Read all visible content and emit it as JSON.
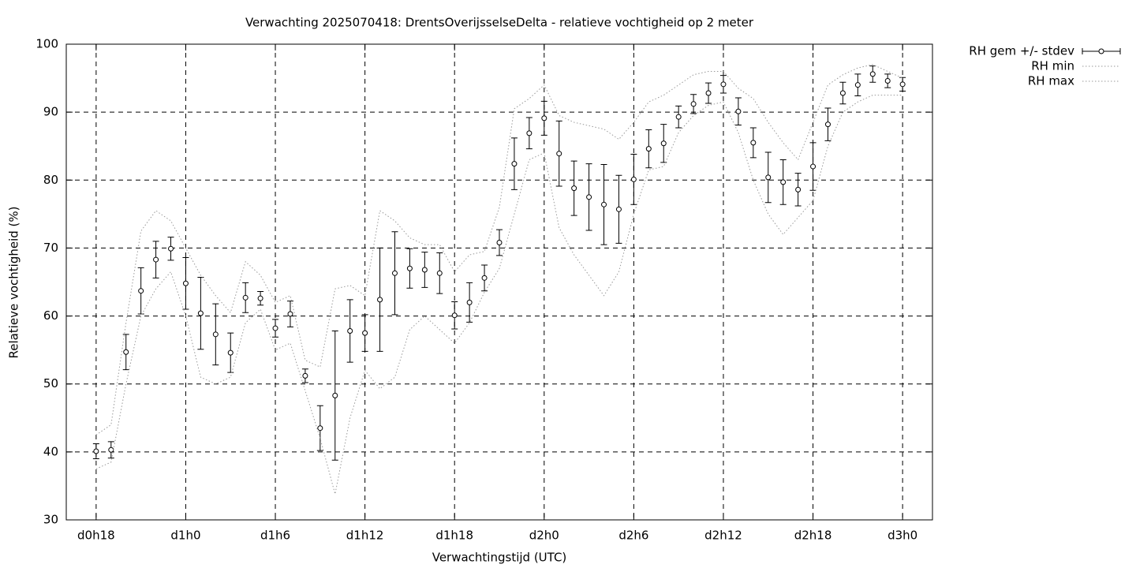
{
  "chart_data": {
    "type": "errorbar",
    "title": "Verwachting 2025070418: DrentsOverijsselseDelta - relatieve vochtigheid op 2 meter",
    "x_label": "Verwachtingstijd (UTC)",
    "y_label": "Relatieve vochtigheid (%)",
    "x": [
      18,
      19,
      20,
      21,
      22,
      23,
      24,
      25,
      26,
      27,
      28,
      29,
      30,
      31,
      32,
      33,
      34,
      35,
      36,
      37,
      38,
      39,
      40,
      41,
      42,
      43,
      44,
      45,
      46,
      47,
      48,
      49,
      50,
      51,
      52,
      53,
      54,
      55,
      56,
      57,
      58,
      59,
      60,
      61,
      62,
      63,
      64,
      65,
      66,
      67,
      68,
      69,
      70,
      71,
      72
    ],
    "xlim": [
      16,
      74
    ],
    "xticks": [
      {
        "value": 18,
        "label": "d0h18"
      },
      {
        "value": 24,
        "label": "d1h0"
      },
      {
        "value": 30,
        "label": "d1h6"
      },
      {
        "value": 36,
        "label": "d1h12"
      },
      {
        "value": 42,
        "label": "d1h18"
      },
      {
        "value": 48,
        "label": "d2h0"
      },
      {
        "value": 54,
        "label": "d2h6"
      },
      {
        "value": 60,
        "label": "d2h12"
      },
      {
        "value": 66,
        "label": "d2h18"
      },
      {
        "value": 72,
        "label": "d3h0"
      }
    ],
    "ylim": [
      30,
      100
    ],
    "yticks": [
      30,
      40,
      50,
      60,
      70,
      80,
      90,
      100
    ],
    "grid": true,
    "legend": "outside-top-right",
    "series": [
      {
        "name": "RH gem +/- stdev",
        "style": "errorbar",
        "color": "#000000",
        "values": [
          40.1,
          40.3,
          54.7,
          63.7,
          68.3,
          69.9,
          64.8,
          60.4,
          57.3,
          54.6,
          62.7,
          62.6,
          58.2,
          60.3,
          51.2,
          43.5,
          48.3,
          57.8,
          57.5,
          62.4,
          66.3,
          67.0,
          66.8,
          66.3,
          60.1,
          62.0,
          65.6,
          70.8,
          82.4,
          86.9,
          89.1,
          83.9,
          78.8,
          77.5,
          76.4,
          75.7,
          80.1,
          84.6,
          85.4,
          89.3,
          91.2,
          92.8,
          94.1,
          90.1,
          85.5,
          80.4,
          79.7,
          78.6,
          82.0,
          88.2,
          92.8,
          94.0,
          95.6,
          94.6,
          94.1
        ],
        "errors": [
          1.1,
          1.2,
          2.6,
          3.4,
          2.7,
          1.7,
          3.8,
          5.3,
          4.5,
          2.9,
          2.2,
          1.0,
          1.3,
          1.9,
          1.0,
          3.3,
          9.5,
          4.6,
          2.7,
          7.6,
          6.1,
          2.9,
          2.6,
          3.0,
          2.0,
          2.9,
          1.9,
          1.9,
          3.8,
          2.3,
          2.5,
          4.8,
          4.0,
          4.9,
          5.9,
          5.0,
          3.7,
          2.8,
          2.8,
          1.6,
          1.4,
          1.5,
          1.3,
          2.0,
          2.2,
          3.7,
          3.3,
          2.4,
          3.5,
          2.4,
          1.6,
          1.6,
          1.2,
          1.0,
          1.0
        ]
      },
      {
        "name": "RH min",
        "style": "dotted",
        "color": "#999999",
        "values": [
          37.5,
          38.5,
          50,
          60,
          64,
          66.5,
          60,
          51,
          50,
          51,
          59,
          61,
          55,
          56,
          49,
          42,
          33.8,
          45,
          52,
          49.3,
          51,
          58,
          60,
          58,
          56,
          59,
          63.5,
          67,
          75,
          83,
          84,
          73,
          69,
          66,
          63,
          66.5,
          75,
          81.5,
          82,
          87,
          89.5,
          91,
          91.5,
          87,
          80,
          75,
          72,
          74.5,
          77,
          85,
          90,
          91.5,
          92.5,
          92.5,
          92.5
        ]
      },
      {
        "name": "RH max",
        "style": "dotted",
        "color": "#999999",
        "values": [
          42.5,
          44,
          59,
          72.5,
          75.5,
          74,
          70,
          66,
          63,
          60.5,
          68,
          66,
          62,
          63,
          53.5,
          52.5,
          64,
          64.5,
          63,
          75.5,
          74,
          71.5,
          70.5,
          70.5,
          66.5,
          69,
          69.5,
          76,
          90.5,
          92,
          94,
          89.5,
          88.5,
          88,
          87.5,
          86,
          88.5,
          91.5,
          92.5,
          94,
          95.5,
          96,
          96,
          93.5,
          92,
          88.5,
          85.5,
          83,
          88.5,
          94,
          95.5,
          96.5,
          97,
          96,
          95
        ]
      }
    ]
  }
}
